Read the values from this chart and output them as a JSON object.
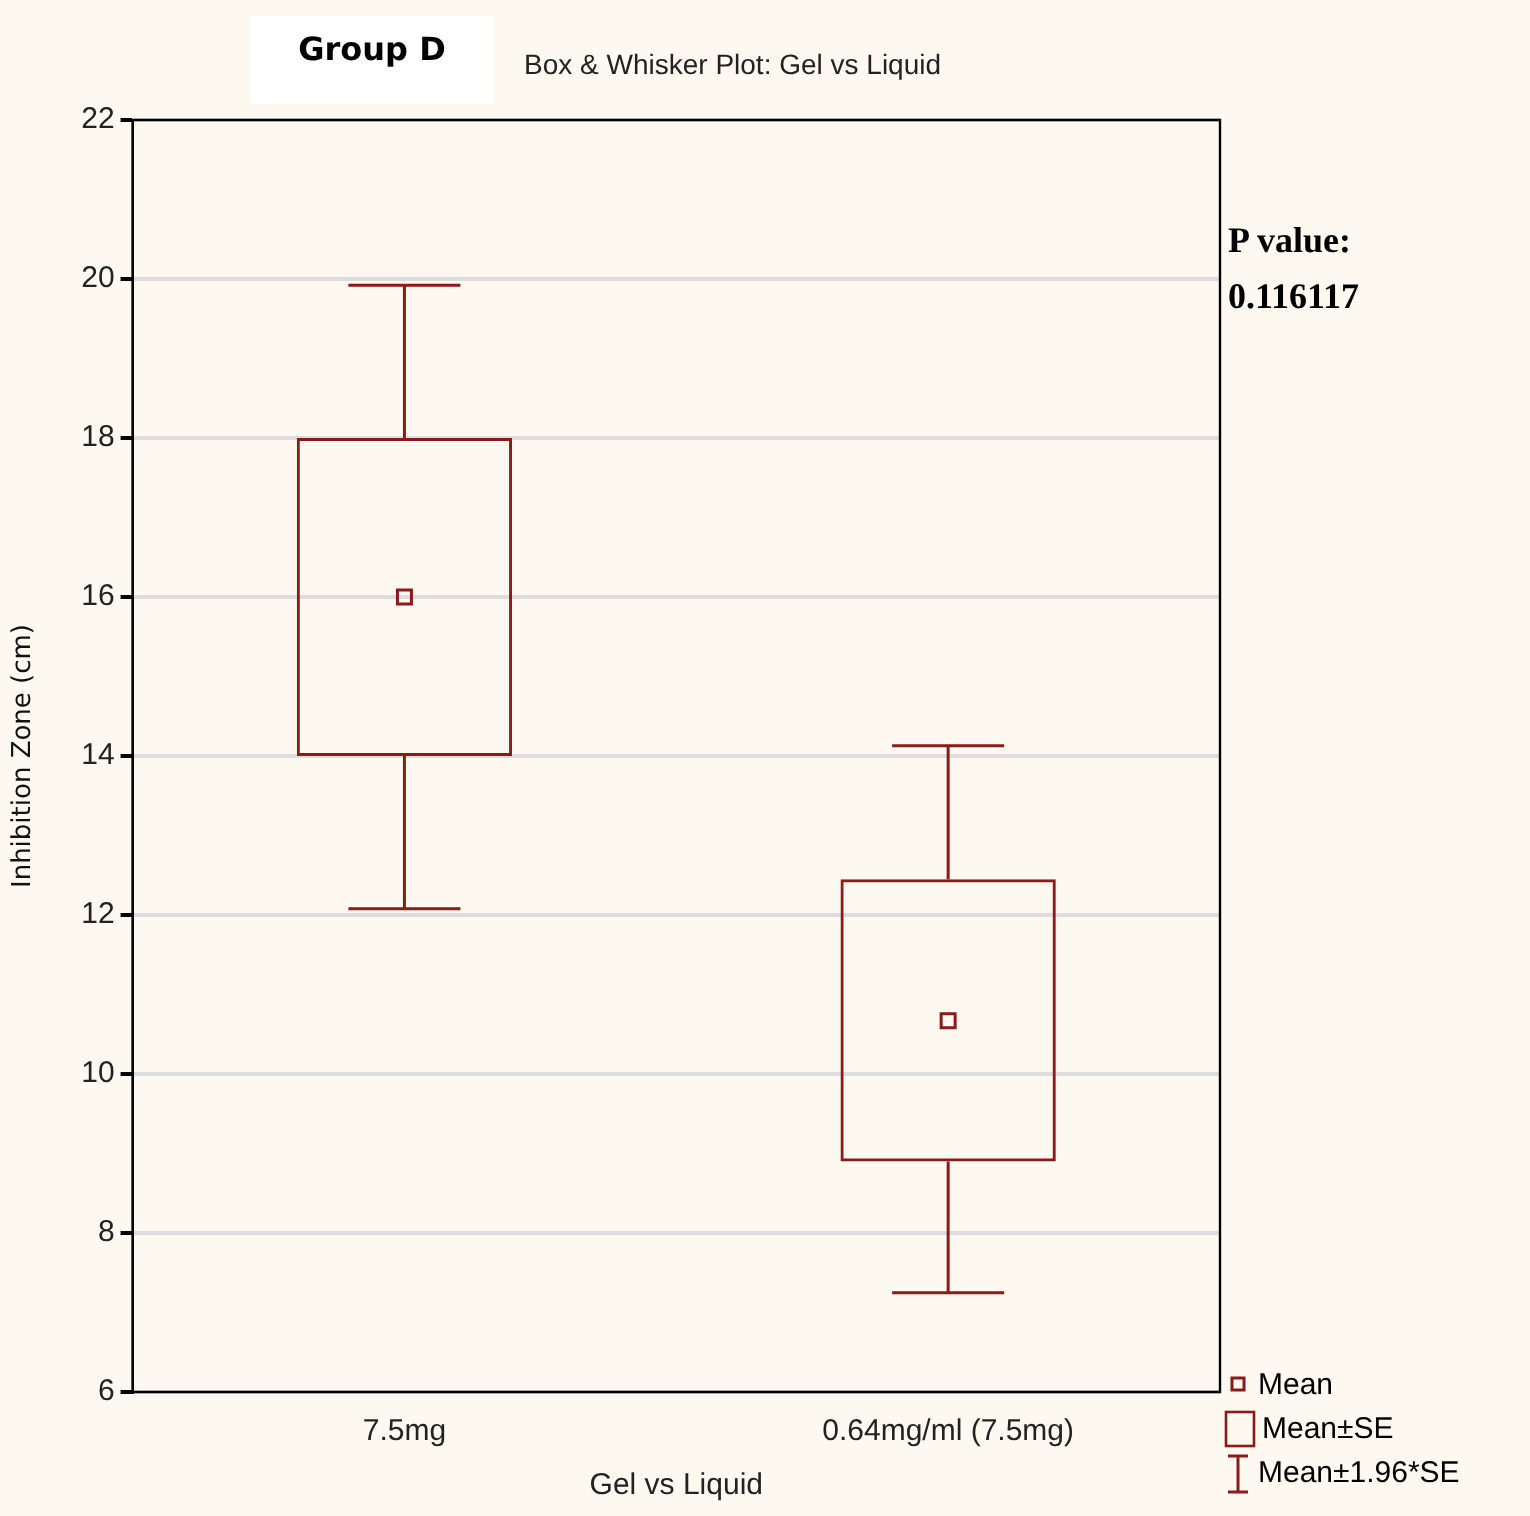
{
  "chart_data": {
    "type": "box",
    "title": "Box & Whisker Plot: Gel vs Liquid",
    "xlabel": "Gel vs Liquid",
    "ylabel": "Inhibition Zone (cm)",
    "categories": [
      "7.5mg",
      "0.64mg/ml (7.5mg)"
    ],
    "series": [
      {
        "color": "#8b1a1a",
        "boxes": [
          {
            "low": 12.08,
            "q1": 14.0,
            "median": 16.0,
            "q3": 18.0,
            "high": 19.92
          },
          {
            "low": 7.25,
            "q1": 8.9,
            "median": 10.67,
            "q3": 12.45,
            "high": 14.13
          }
        ]
      }
    ],
    "ylim": [
      6,
      22
    ],
    "yticks": [
      6,
      8,
      10,
      12,
      14,
      16,
      18,
      20,
      22
    ],
    "grid": "y",
    "annotations": [
      "Group D",
      "P value:\n0.116117",
      "Mean",
      "Mean±SE",
      "Mean±1.96*SE"
    ]
  }
}
